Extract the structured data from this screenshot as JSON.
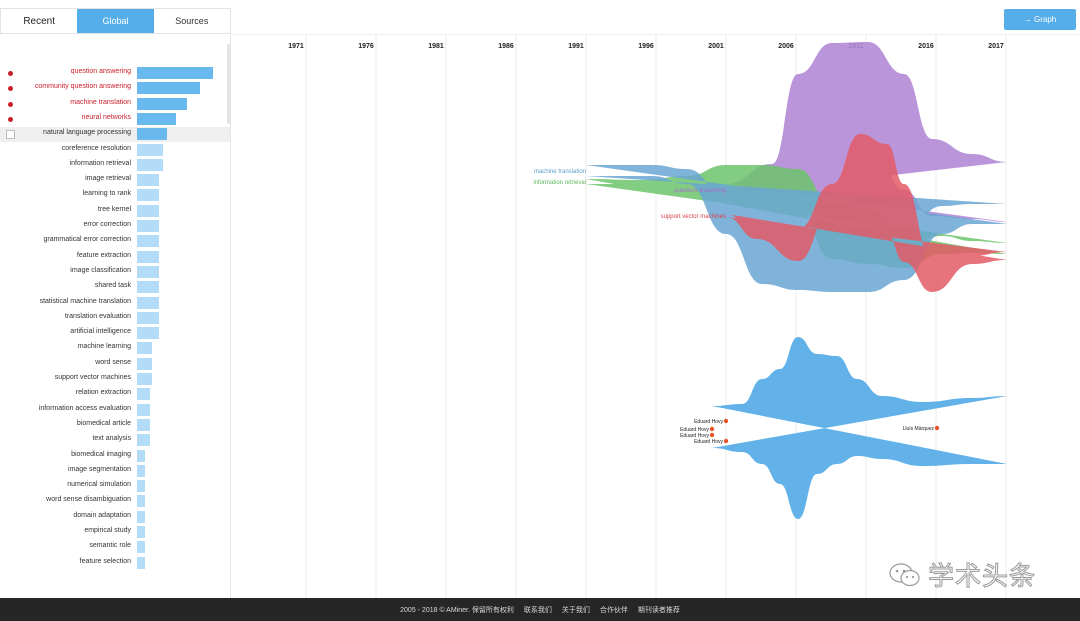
{
  "tabs": [
    {
      "label": "Recent",
      "active": false
    },
    {
      "label": "Global",
      "active": true
    },
    {
      "label": "Sources",
      "active": false
    }
  ],
  "graph_button": {
    "label": "→ Graph"
  },
  "topics": [
    {
      "label": "question answering",
      "value": 75,
      "selected": true
    },
    {
      "label": "community question answering",
      "value": 62,
      "selected": true
    },
    {
      "label": "machine translation",
      "value": 49,
      "selected": true
    },
    {
      "label": "neural networks",
      "value": 38,
      "selected": true
    },
    {
      "label": "natural language processing",
      "value": 30,
      "highlighted": true
    },
    {
      "label": "coreference resolution",
      "value": 26
    },
    {
      "label": "information retrieval",
      "value": 26
    },
    {
      "label": "image retrieval",
      "value": 22
    },
    {
      "label": "learning to rank",
      "value": 22
    },
    {
      "label": "tree kernel",
      "value": 22
    },
    {
      "label": "error correction",
      "value": 22
    },
    {
      "label": "grammatical error correction",
      "value": 22
    },
    {
      "label": "feature extraction",
      "value": 22
    },
    {
      "label": "image classification",
      "value": 22
    },
    {
      "label": "shared task",
      "value": 22
    },
    {
      "label": "statistical machine translation",
      "value": 22
    },
    {
      "label": "translation evaluation",
      "value": 22
    },
    {
      "label": "artificial intelligence",
      "value": 22
    },
    {
      "label": "machine learning",
      "value": 15
    },
    {
      "label": "word sense",
      "value": 15
    },
    {
      "label": "support vector machines",
      "value": 15
    },
    {
      "label": "relation extraction",
      "value": 13
    },
    {
      "label": "information access evaluation",
      "value": 13
    },
    {
      "label": "biomedical article",
      "value": 13
    },
    {
      "label": "text analysis",
      "value": 13
    },
    {
      "label": "biomedical imaging",
      "value": 8
    },
    {
      "label": "image segmentation",
      "value": 8
    },
    {
      "label": "numerical simulation",
      "value": 8
    },
    {
      "label": "word sense disambiguation",
      "value": 8
    },
    {
      "label": "domain adaptation",
      "value": 8
    },
    {
      "label": "empirical study",
      "value": 8
    },
    {
      "label": "semantic role",
      "value": 8
    },
    {
      "label": "feature selection",
      "value": 8
    }
  ],
  "chart_data": {
    "type": "area",
    "years": [
      "1971",
      "1976",
      "1981",
      "1986",
      "1991",
      "1996",
      "2001",
      "2006",
      "2011",
      "2016",
      "2017"
    ],
    "stream_labels": [
      {
        "text": "machine translation",
        "color": "#5b9ccc"
      },
      {
        "text": "information retrieval",
        "color": "#5cb85c"
      },
      {
        "text": "question answering",
        "color": "#a56fc9"
      },
      {
        "text": "support vector machines",
        "color": "#d9434f"
      }
    ],
    "authors": [
      "Eduard Hovy",
      "Eduard Hovy",
      "Eduard Hovy",
      "Eduard Hovy",
      "Lluís Màrquez"
    ],
    "colors": {
      "purple": "#b48ad6",
      "green": "#6cc46c",
      "red": "#e35a66",
      "blue": "#6aa6d2",
      "author_stream": "#5aaee8",
      "selected": "#c8202a",
      "accent": "#55aee9"
    }
  },
  "footer": {
    "copyright": "2005 - 2018 © AMiner. 保留所有权利",
    "links": [
      "联系我们",
      "关于我们",
      "合作伙伴",
      "期刊读者推荐"
    ]
  },
  "watermark": {
    "text": "学术头条"
  }
}
